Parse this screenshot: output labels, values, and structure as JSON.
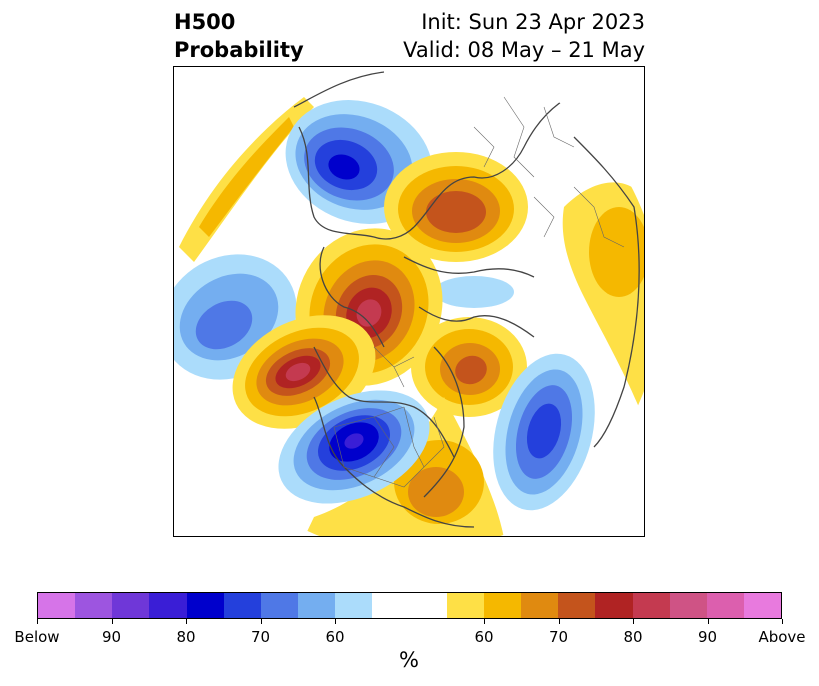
{
  "title": {
    "left_line1": "H500",
    "left_line2": "Probability",
    "right_line1": "Init: Sun 23 Apr 2023",
    "right_line2": "Valid: 08 May – 21 May"
  },
  "colorbar": {
    "unit_label": "%",
    "colors": [
      "#d674e8",
      "#9d55e0",
      "#6f37d8",
      "#3a1ed6",
      "#0000cc",
      "#2440dc",
      "#4f78e6",
      "#74aef0",
      "#abdcfb",
      "#ffffff",
      "#ffffff",
      "#fee046",
      "#f5b800",
      "#e08a10",
      "#c4541c",
      "#b02323",
      "#c43a50",
      "#cf5385",
      "#dc5fae",
      "#e87ade"
    ],
    "tick_labels": [
      "Below",
      "90",
      "80",
      "70",
      "60",
      "60",
      "70",
      "80",
      "90",
      "Above"
    ]
  },
  "map": {
    "projection": "north-polar-stereographic",
    "features": "coastlines, country and state borders",
    "below_color": "#0000cc",
    "above_color": "#b02323"
  }
}
